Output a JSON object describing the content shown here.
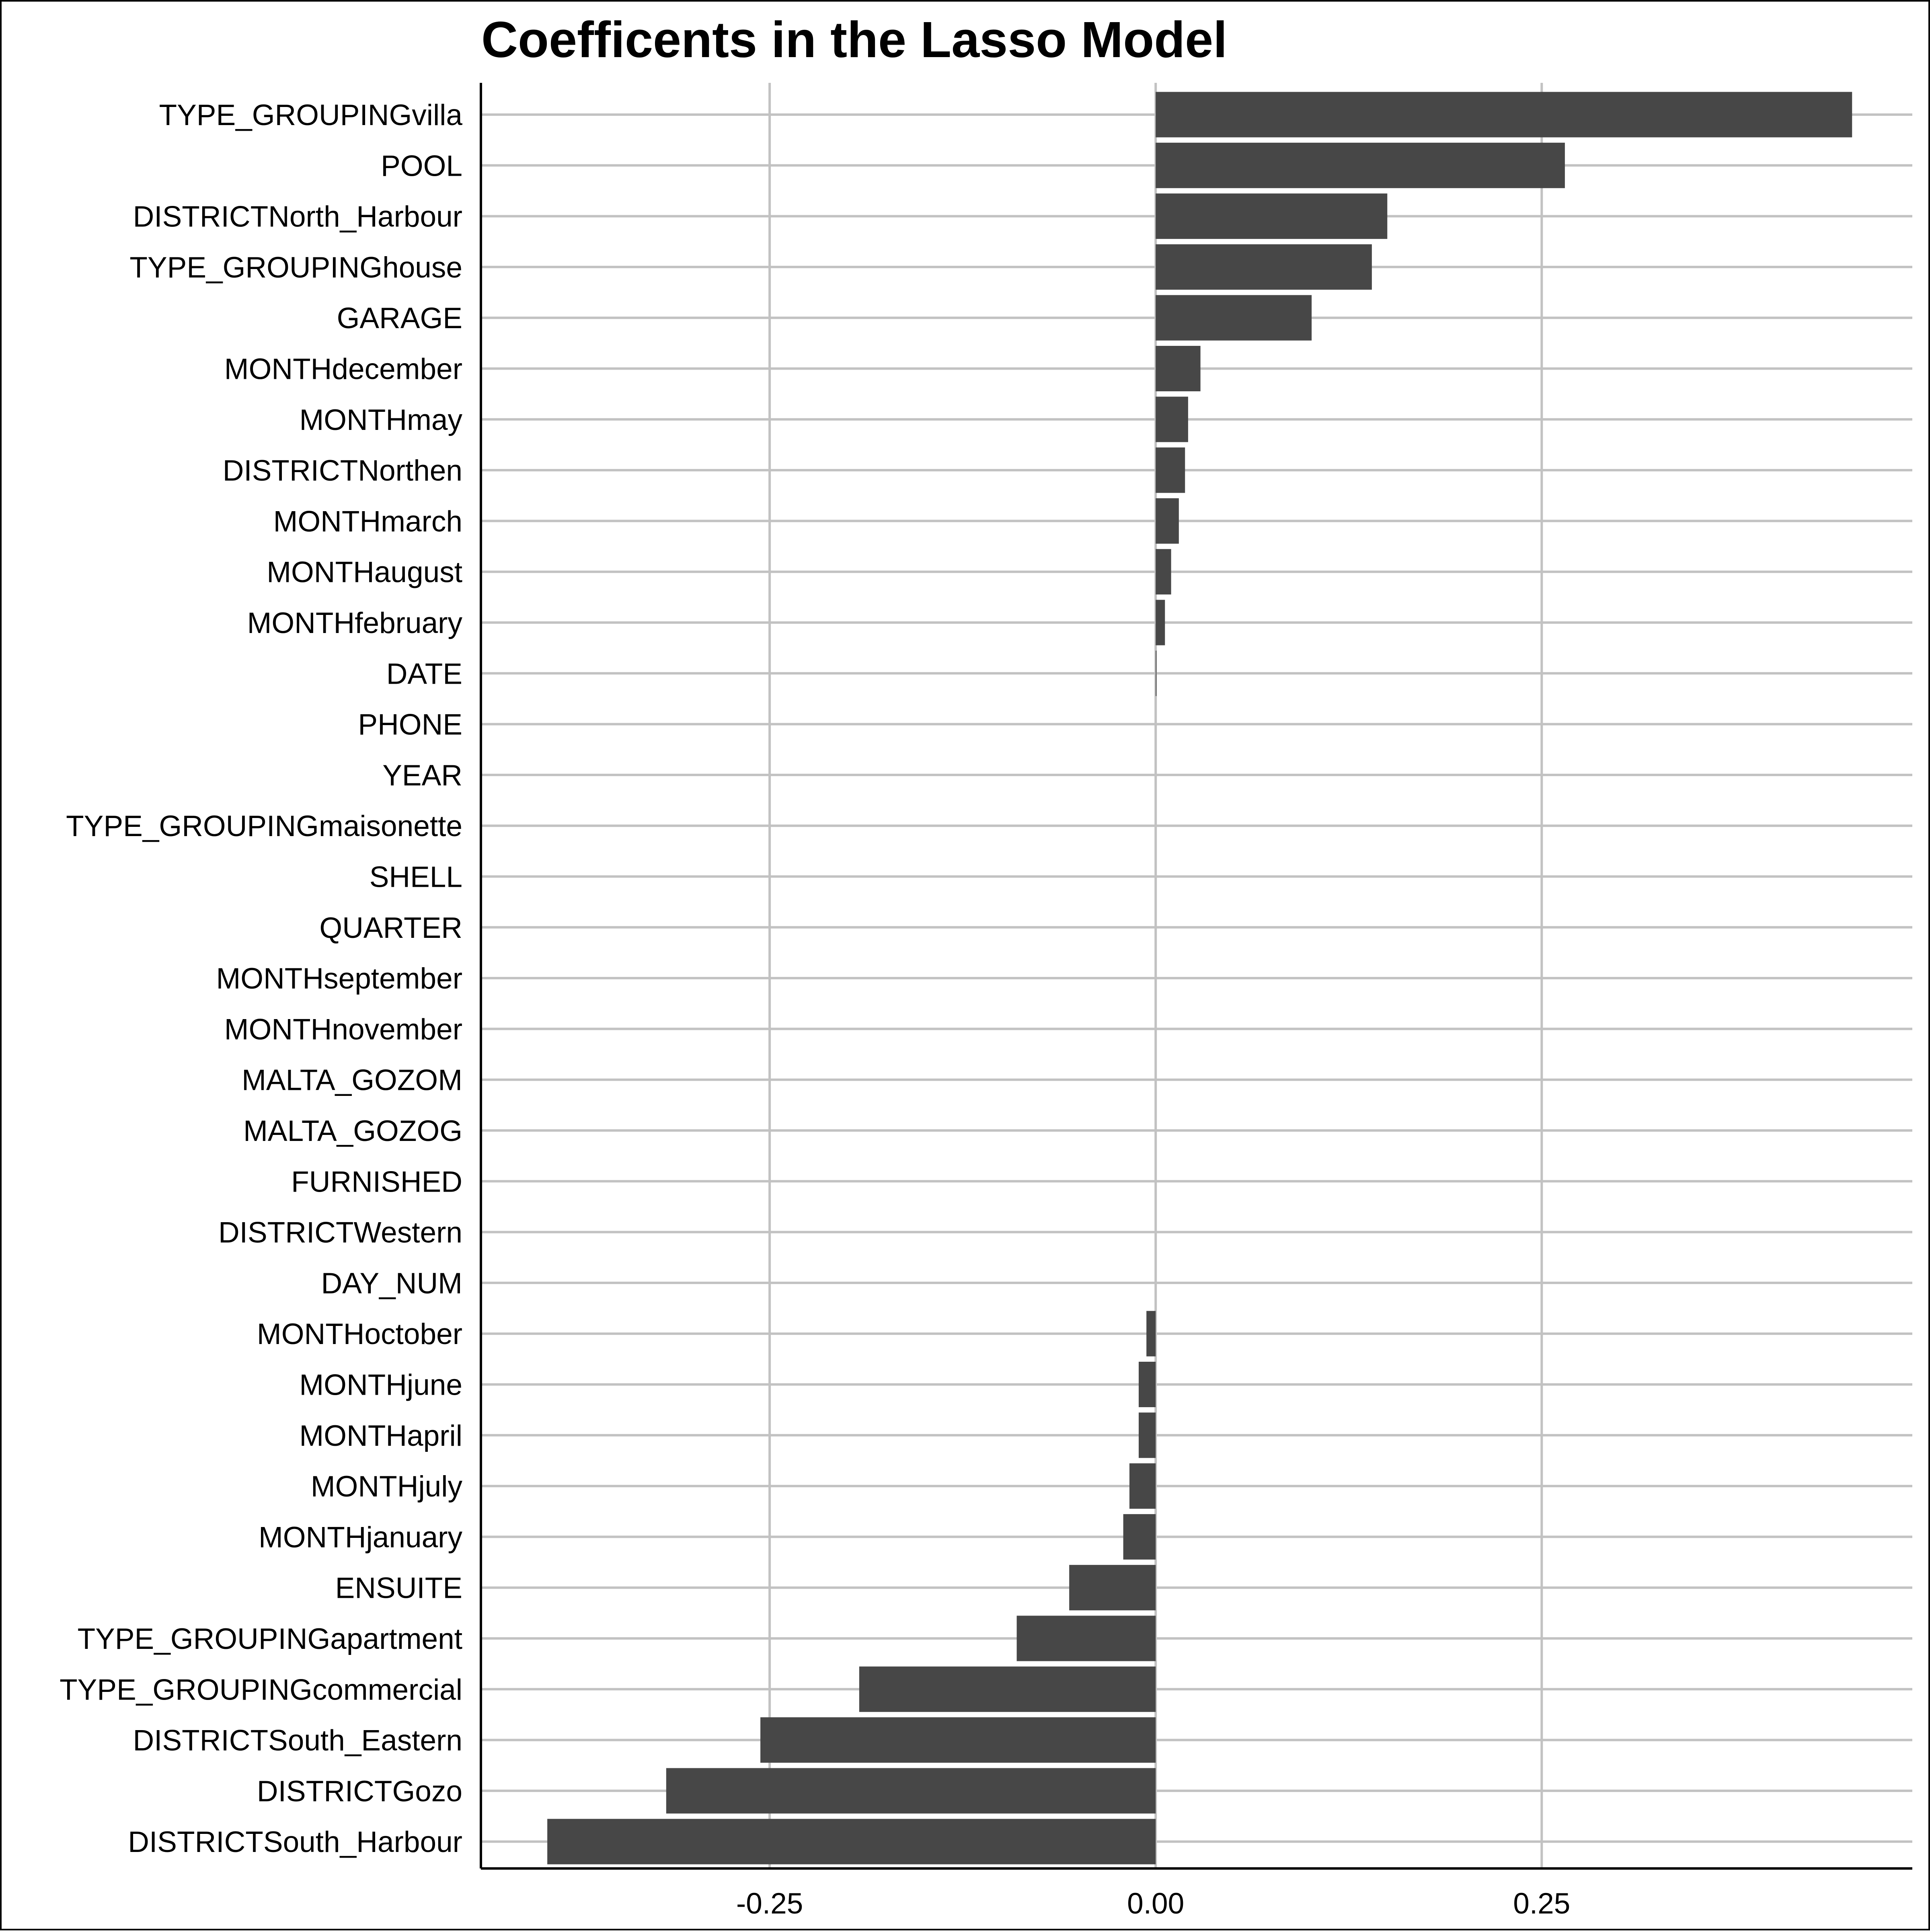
{
  "chart_data": {
    "type": "bar",
    "orientation": "horizontal",
    "title": "Coefficents in the Lasso Model",
    "xlabel": "",
    "ylabel": "",
    "xlim": [
      -0.437,
      0.49
    ],
    "x_ticks": [
      -0.25,
      0.0,
      0.25
    ],
    "x_tick_labels": [
      "-0.25",
      "0.00",
      "0.25"
    ],
    "grid": true,
    "legend": "none",
    "bar_color": "#474747",
    "grid_color": "#c2c2c2",
    "categories": [
      "TYPE_GROUPINGvilla",
      "POOL",
      "DISTRICTNorth_Harbour",
      "TYPE_GROUPINGhouse",
      "GARAGE",
      "MONTHdecember",
      "MONTHmay",
      "DISTRICTNorthen",
      "MONTHmarch",
      "MONTHaugust",
      "MONTHfebruary",
      "DATE",
      "PHONE",
      "YEAR",
      "TYPE_GROUPINGmaisonette",
      "SHELL",
      "QUARTER",
      "MONTHseptember",
      "MONTHnovember",
      "MALTA_GOZOM",
      "MALTA_GOZOG",
      "FURNISHED",
      "DISTRICTWestern",
      "DAY_NUM",
      "MONTHoctober",
      "MONTHjune",
      "MONTHapril",
      "MONTHjuly",
      "MONTHjanuary",
      "ENSUITE",
      "TYPE_GROUPINGapartment",
      "TYPE_GROUPINGcommercial",
      "DISTRICTSouth_Eastern",
      "DISTRICTGozo",
      "DISTRICTSouth_Harbour"
    ],
    "values": [
      0.451,
      0.265,
      0.15,
      0.14,
      0.101,
      0.029,
      0.021,
      0.019,
      0.015,
      0.01,
      0.006,
      0.0003,
      0,
      0,
      0,
      0,
      0,
      0,
      0,
      0,
      0,
      0,
      0,
      0,
      -0.006,
      -0.011,
      -0.011,
      -0.017,
      -0.021,
      -0.056,
      -0.09,
      -0.192,
      -0.256,
      -0.317,
      -0.394
    ]
  }
}
